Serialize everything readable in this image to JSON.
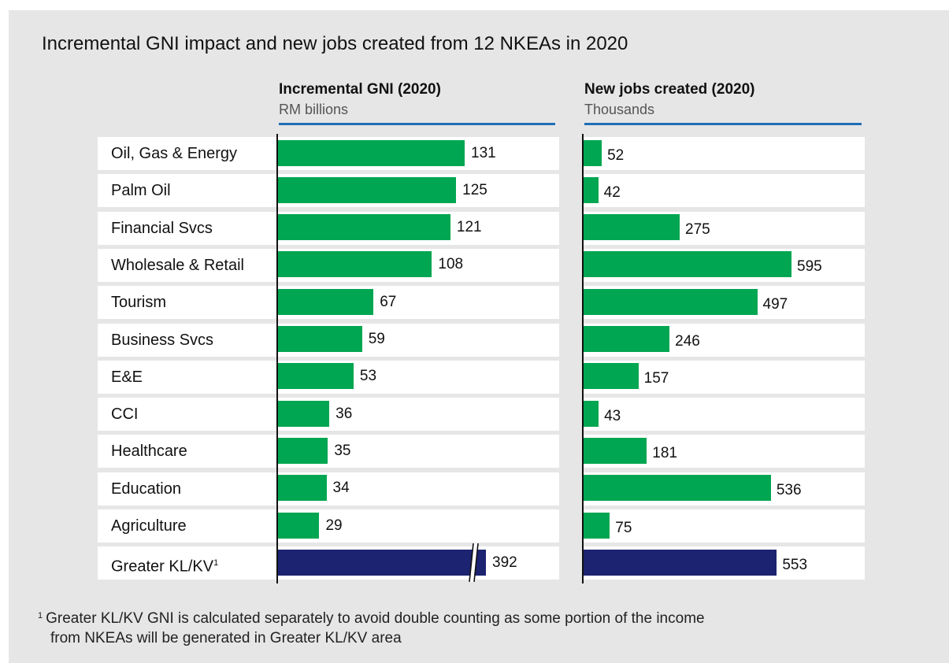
{
  "chart_data": [
    {
      "type": "bar",
      "orientation": "horizontal",
      "title": "Incremental GNI impact and new jobs created from 12 NKEAs in 2020",
      "subtitle": "Incremental GNI (2020)",
      "unit": "RM billions",
      "categories": [
        "Oil, Gas & Energy",
        "Palm Oil",
        "Financial Svcs",
        "Wholesale & Retail",
        "Tourism",
        "Business Svcs",
        "E&E",
        "CCI",
        "Healthcare",
        "Education",
        "Agriculture",
        "Greater KL/KV"
      ],
      "values": [
        131,
        125,
        121,
        108,
        67,
        59,
        53,
        36,
        35,
        34,
        29,
        392
      ],
      "colors": [
        "#00a651",
        "#00a651",
        "#00a651",
        "#00a651",
        "#00a651",
        "#00a651",
        "#00a651",
        "#00a651",
        "#00a651",
        "#00a651",
        "#00a651",
        "#1c2370"
      ],
      "broken_axis_categories": [
        "Greater KL/KV"
      ],
      "grid": false
    },
    {
      "type": "bar",
      "orientation": "horizontal",
      "subtitle": "New jobs created (2020)",
      "unit": "Thousands",
      "categories": [
        "Oil, Gas & Energy",
        "Palm Oil",
        "Financial Svcs",
        "Wholesale & Retail",
        "Tourism",
        "Business Svcs",
        "E&E",
        "CCI",
        "Healthcare",
        "Education",
        "Agriculture",
        "Greater KL/KV"
      ],
      "values": [
        52,
        42,
        275,
        595,
        497,
        246,
        157,
        43,
        181,
        536,
        75,
        553
      ],
      "colors": [
        "#00a651",
        "#00a651",
        "#00a651",
        "#00a651",
        "#00a651",
        "#00a651",
        "#00a651",
        "#00a651",
        "#00a651",
        "#00a651",
        "#00a651",
        "#1c2370"
      ],
      "grid": false
    }
  ],
  "footnote": {
    "marker": "1",
    "text_line1": "Greater KL/KV GNI is calculated separately to avoid double counting as some portion of the income",
    "text_line2": "from NKEAs will be generated in Greater KL/KV area"
  },
  "colors": {
    "bar": "#00a651",
    "highlight_bar": "#1c2370",
    "rule": "#1f6fb4",
    "panel": "#e6e6e7"
  }
}
